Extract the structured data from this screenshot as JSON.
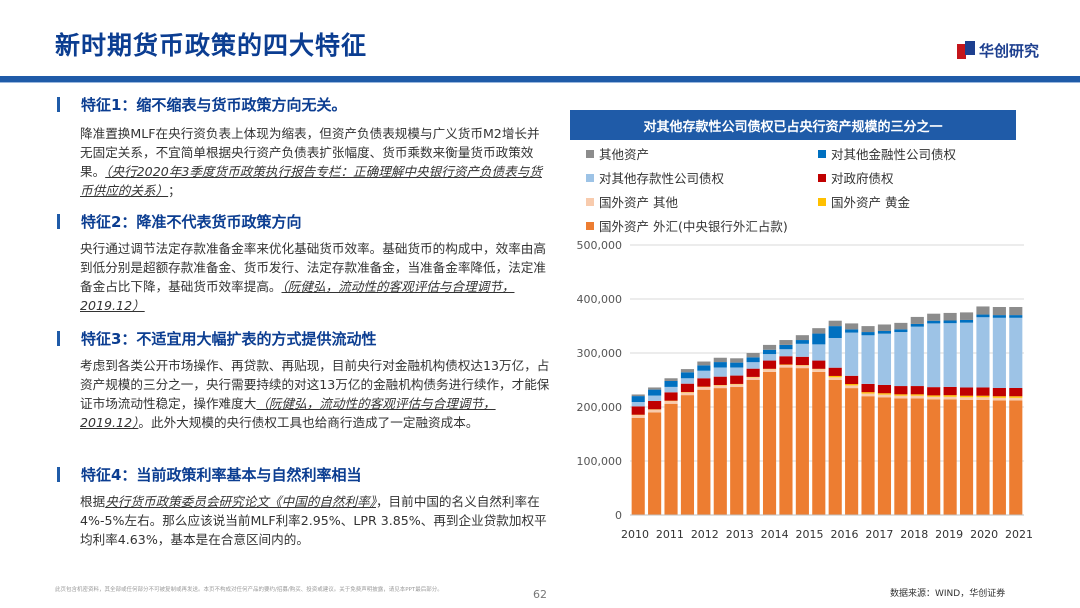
{
  "header": {
    "title": "新时期货币政策的四大特征",
    "logo_text": "华创研究",
    "colors": {
      "primary": "#1f5ba8",
      "title": "#0b3d91",
      "logo_red": "#c4161c"
    }
  },
  "sections": [
    {
      "title": "特征1：缩不缩表与货币政策方向无关。",
      "body": "降准置换MLF在央行资负表上体现为缩表，但资产负债表规模与广义货币M2增长并无固定关系，不宜简单根据央行资产负债表扩张幅度、货币乘数来衡量货币政策效果。",
      "ref": "（央行2020年3季度货币政策执行报告专栏：正确理解中央银行资产负债表与货币供应的关系）",
      "tail": "；"
    },
    {
      "title": "特征2：降准不代表货币政策方向",
      "body": "央行通过调节法定存款准备金率来优化基础货币效率。基础货币的构成中，效率由高到低分别是超额存款准备金、货币发行、法定存款准备金，当准备金率降低，法定准备金占比下降，基础货币效率提高。",
      "ref": "（阮健弘，流动性的客观评估与合理调节，2019.12）",
      "tail": ""
    },
    {
      "title": "特征3：不适宜用大幅扩表的方式提供流动性",
      "body": "考虑到各类公开市场操作、再贷款、再贴现，目前央行对金融机构债权达13万亿，占资产规模的三分之一，央行需要持续的对这13万亿的金融机构债务进行续作，才能保证市场流动性稳定，操作难度大",
      "ref": "（阮健弘，流动性的客观评估与合理调节，2019.12）",
      "tail": "。此外大规模的央行债权工具也给商行造成了一定融资成本。"
    },
    {
      "title": "特征4：当前政策利率基本与自然利率相当",
      "pre": "根据",
      "ref": "央行货币政策委员会研究论文《中国的自然利率》",
      "body": "，目前中国的名义自然利率在4%-5%左右。那么应该说当前MLF利率2.95%、LPR 3.85%、再到企业贷款加权平均利率4.63%，基本是在合意区间内的。"
    }
  ],
  "chart_title": "对其他存款性公司债权已占央行资产规模的三分之一",
  "chart_data": {
    "type": "bar",
    "stacked": true,
    "title": "对其他存款性公司债权已占央行资产规模的三分之一",
    "xlabel": "",
    "ylabel": "",
    "ylim": [
      0,
      500000
    ],
    "yticks": [
      0,
      100000,
      200000,
      300000,
      400000,
      500000
    ],
    "ytick_labels": [
      "0",
      "100,000",
      "200,000",
      "300,000",
      "400,000",
      "500,000"
    ],
    "xtick_labels": [
      "2010",
      "2011",
      "2012",
      "2013",
      "2014",
      "2015",
      "2016",
      "2017",
      "2018",
      "2019",
      "2020",
      "2021"
    ],
    "grid": true,
    "legend_position": "top",
    "categories": [
      "2010-01",
      "2010-07",
      "2011-01",
      "2011-07",
      "2012-01",
      "2012-07",
      "2013-01",
      "2013-07",
      "2014-01",
      "2014-07",
      "2015-01",
      "2015-07",
      "2016-01",
      "2016-07",
      "2017-01",
      "2017-07",
      "2018-01",
      "2018-07",
      "2019-01",
      "2019-07",
      "2020-01",
      "2020-07",
      "2021-01",
      "2021-06"
    ],
    "series": [
      {
        "name": "国外资产 外汇(中央银行外汇占款)",
        "color": "#ed7d31",
        "values": [
          180000,
          190000,
          206000,
          222000,
          232000,
          235000,
          237000,
          250000,
          265000,
          273000,
          272000,
          265000,
          250000,
          235000,
          220000,
          218000,
          216000,
          216000,
          214000,
          214000,
          213000,
          213000,
          212000,
          212000
        ]
      },
      {
        "name": "国外资产 其他",
        "color": "#f8cbad",
        "values": [
          5000,
          5000,
          5000,
          5000,
          5000,
          5000,
          5000,
          5000,
          5000,
          5000,
          5000,
          5000,
          5000,
          5000,
          5000,
          5000,
          5000,
          5000,
          5000,
          5000,
          5000,
          5000,
          5000,
          5000
        ]
      },
      {
        "name": "国外资产 黄金",
        "color": "#ffc000",
        "values": [
          700,
          700,
          700,
          700,
          700,
          700,
          700,
          700,
          700,
          700,
          700,
          700,
          2500,
          2500,
          2500,
          2500,
          2500,
          2500,
          2500,
          2900,
          2900,
          2900,
          2900,
          2900
        ]
      },
      {
        "name": "对政府债权",
        "color": "#c00000",
        "values": [
          15500,
          15500,
          15500,
          15500,
          15500,
          15500,
          15500,
          15300,
          15300,
          15300,
          15300,
          15300,
          15300,
          15300,
          15300,
          15300,
          15300,
          15300,
          15300,
          15300,
          15300,
          15300,
          15300,
          15300
        ]
      },
      {
        "name": "对其他存款性公司债权",
        "color": "#9dc3e6",
        "values": [
          8000,
          10000,
          10000,
          10000,
          14000,
          17000,
          15000,
          12000,
          12000,
          13000,
          24000,
          30000,
          55000,
          80000,
          90000,
          95000,
          100000,
          110000,
          118000,
          118000,
          120000,
          130000,
          130000,
          130000
        ]
      },
      {
        "name": "对其他金融性公司债权",
        "color": "#0070c0",
        "values": [
          11000,
          11000,
          11000,
          11000,
          10000,
          10000,
          9000,
          9000,
          8000,
          8000,
          7000,
          20000,
          22000,
          6000,
          6000,
          5000,
          5000,
          5000,
          5000,
          5000,
          5000,
          5000,
          5000,
          5000
        ]
      },
      {
        "name": "其他资产",
        "color": "#8c8c8c",
        "values": [
          3000,
          4000,
          5000,
          6000,
          7000,
          8000,
          8000,
          8000,
          9000,
          9000,
          9000,
          10000,
          10000,
          11000,
          11000,
          12000,
          12000,
          13000,
          13000,
          14000,
          14000,
          15000,
          15000,
          15000
        ]
      }
    ]
  },
  "legend": [
    {
      "label": "其他资产",
      "color": "#8c8c8c"
    },
    {
      "label": "对其他金融性公司债权",
      "color": "#0070c0"
    },
    {
      "label": "对其他存款性公司债权",
      "color": "#9dc3e6"
    },
    {
      "label": "对政府债权",
      "color": "#c00000"
    },
    {
      "label": "国外资产 其他",
      "color": "#f8cbad"
    },
    {
      "label": "国外资产 黄金",
      "color": "#ffc000"
    },
    {
      "label": "国外资产 外汇(中央银行外汇占款)",
      "color": "#ed7d31"
    }
  ],
  "footer": {
    "disclaimer": "此页包含机密资料，其全部或任何部分不可被复制或再发送。本页不构成对任何产品的要约/招募/购买、投资或建议。关于免费声明披露，请见本PPT最后部分。",
    "page": "62",
    "source": "数据来源：WIND，华创证券"
  }
}
